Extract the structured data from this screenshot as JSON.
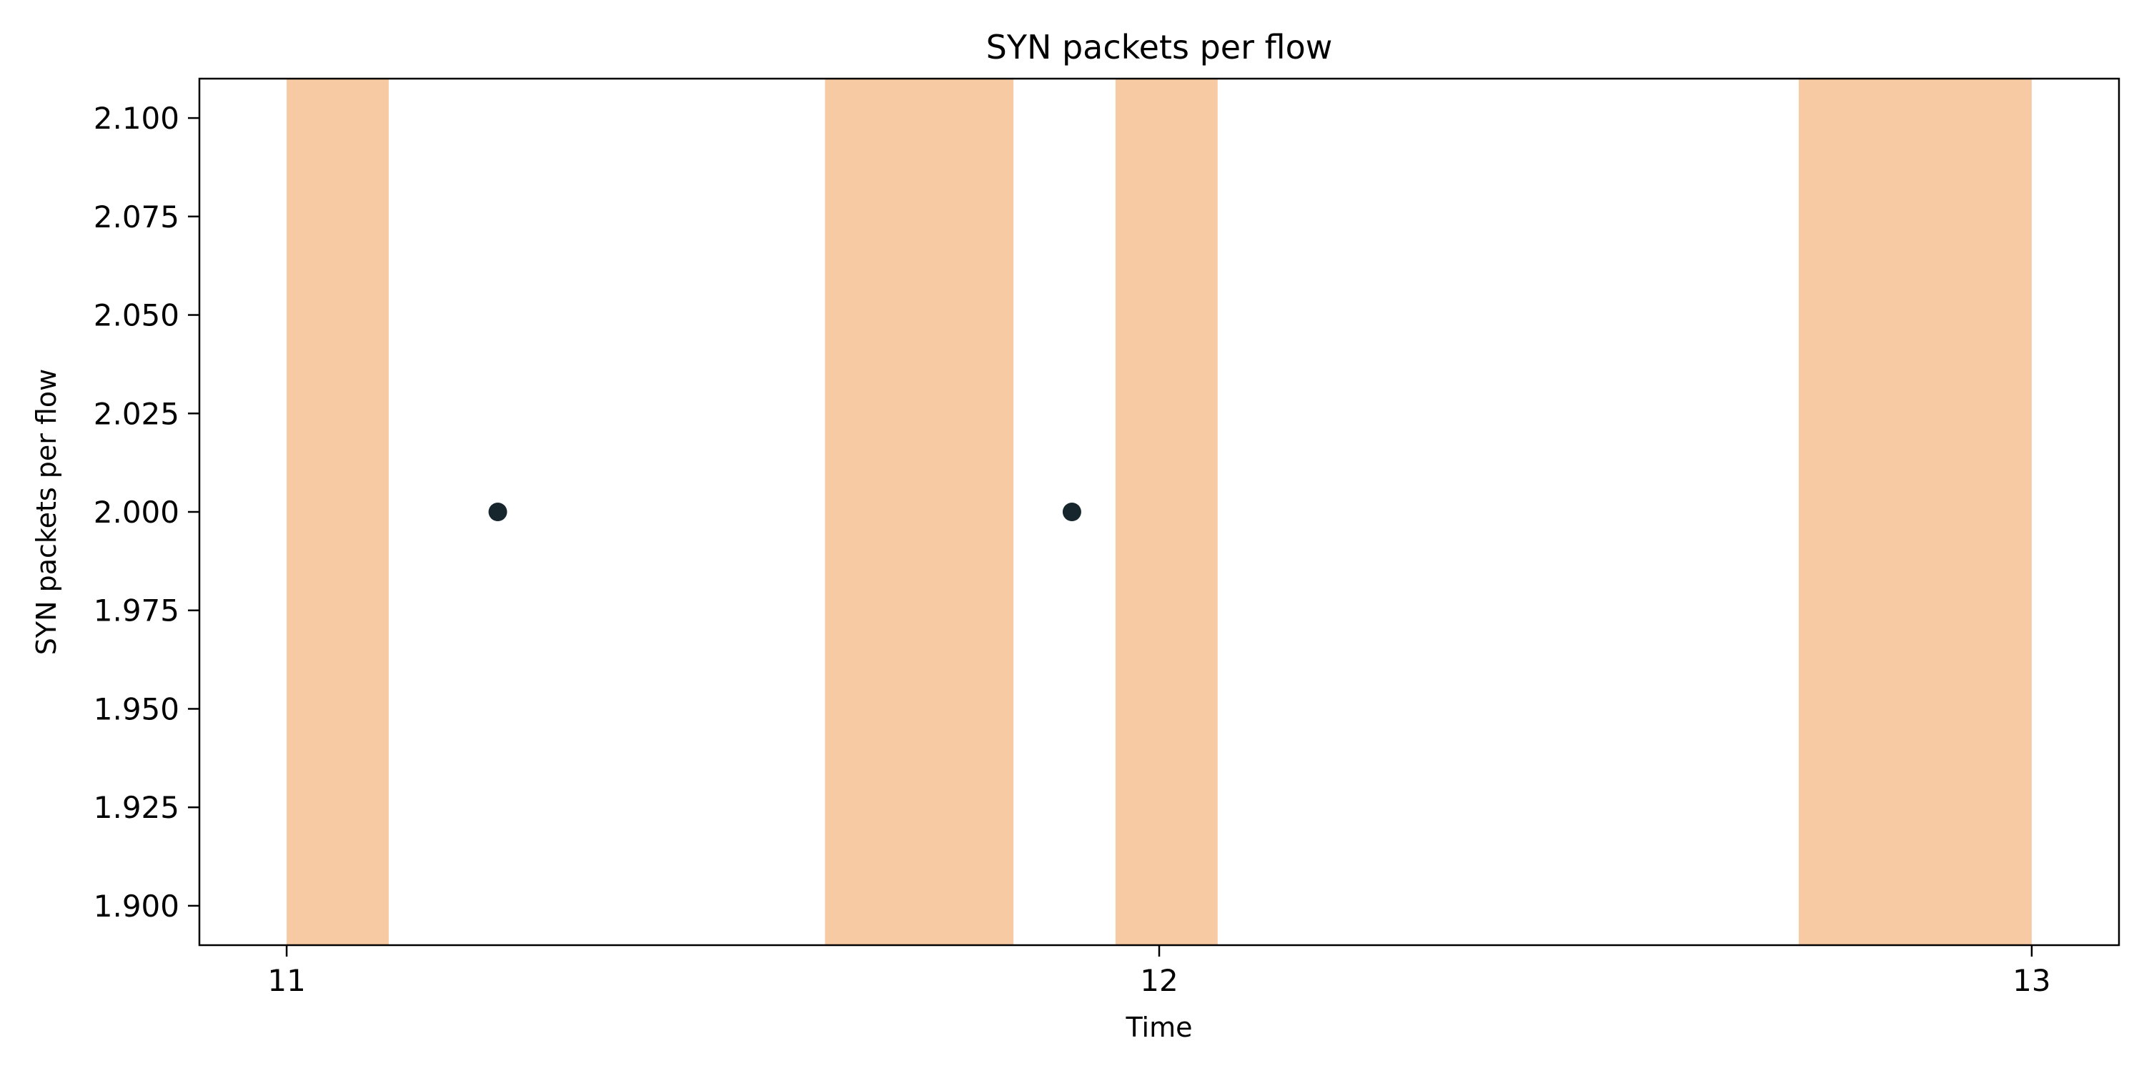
{
  "chart_data": {
    "type": "scatter",
    "title": "SYN packets per flow",
    "xlabel": "Time",
    "ylabel": "SYN packets per flow",
    "xlim": [
      10.9,
      13.1
    ],
    "ylim": [
      1.89,
      2.11
    ],
    "x_ticks": [
      {
        "value": 11,
        "label": "11"
      },
      {
        "value": 12,
        "label": "12"
      },
      {
        "value": 13,
        "label": "13"
      }
    ],
    "y_ticks": [
      {
        "value": 1.9,
        "label": "1.900"
      },
      {
        "value": 1.925,
        "label": "1.925"
      },
      {
        "value": 1.95,
        "label": "1.950"
      },
      {
        "value": 1.975,
        "label": "1.975"
      },
      {
        "value": 2.0,
        "label": "2.000"
      },
      {
        "value": 2.025,
        "label": "2.025"
      },
      {
        "value": 2.05,
        "label": "2.050"
      },
      {
        "value": 2.075,
        "label": "2.075"
      },
      {
        "value": 2.1,
        "label": "2.100"
      }
    ],
    "highlight_spans": [
      {
        "x_start": 11.0,
        "x_end": 11.117
      },
      {
        "x_start": 11.617,
        "x_end": 11.833
      },
      {
        "x_start": 11.95,
        "x_end": 12.067
      },
      {
        "x_start": 12.733,
        "x_end": 13.0
      }
    ],
    "series": [
      {
        "points": [
          {
            "x": 11.242,
            "y": 2.0
          },
          {
            "x": 11.9,
            "y": 2.0
          }
        ]
      }
    ],
    "grid": false,
    "colors": {
      "span": "#f8caa4",
      "point": "#17252d",
      "axis": "#000000"
    }
  }
}
